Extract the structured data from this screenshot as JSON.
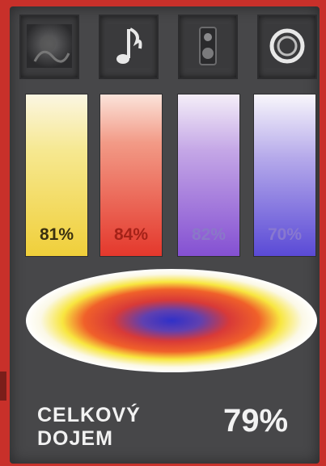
{
  "categories": [
    {
      "icon": "image-icon",
      "value": 81,
      "label": "81%",
      "color": "#f5d84a",
      "label_color": "#3a3010"
    },
    {
      "icon": "music-note-icon",
      "value": 84,
      "label": "84%",
      "color": "#e84a3a",
      "label_color": "#a52218"
    },
    {
      "icon": "speaker-icon",
      "value": 82,
      "label": "82%",
      "color": "#8f6ad6",
      "label_color": "#8a78c8"
    },
    {
      "icon": "ring-icon",
      "value": 70,
      "label": "70%",
      "color": "#6c5ad8",
      "label_color": "#8878d0"
    }
  ],
  "overall": {
    "title_line1": "CELKOVÝ",
    "title_line2": "DOJEM",
    "score": "79%",
    "value": 79
  }
}
